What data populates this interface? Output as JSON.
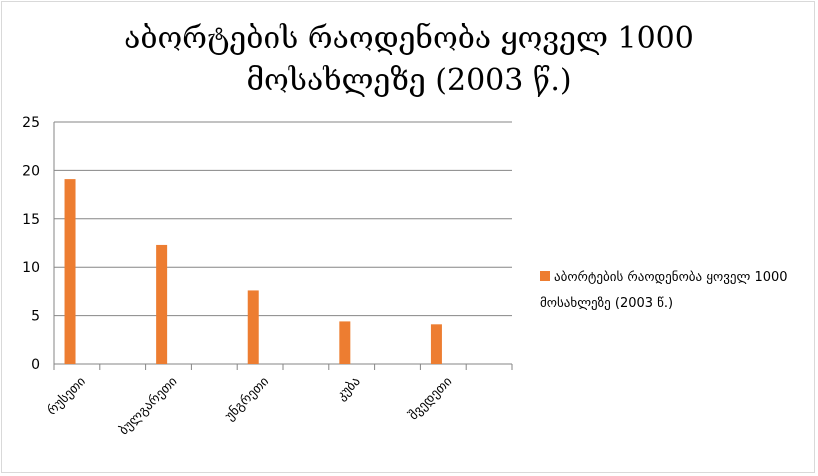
{
  "chart_data": {
    "type": "bar",
    "title": "აბორტების რაოდენობა ყოველ 1000 მოსახლეზე (2003 წ.)",
    "title_lines": [
      "აბორტების რაოდენობა ყოველ 1000",
      "მოსახლეზე (2003 წ.)"
    ],
    "categories": [
      "რუსეთი",
      "ბულგარეთი",
      "უნგრეთი",
      "კუბა",
      "შვედეთი"
    ],
    "series": [
      {
        "name": "აბორტების რაოდენობა ყოველ 1000 მოსახლეზე (2003 წ.)",
        "values": [
          19.1,
          12.3,
          7.6,
          4.4,
          4.1
        ],
        "color": "#ed7d31"
      }
    ],
    "xlabel": "",
    "ylabel": "",
    "ylim": [
      0,
      25
    ],
    "yticks": [
      0,
      5,
      10,
      15,
      20,
      25
    ],
    "grid": true,
    "legend_position": "right"
  },
  "legend": {
    "label": "აბორტების რაოდენობა ყოველ 1000 მოსახლეზე (2003 წ.)"
  }
}
